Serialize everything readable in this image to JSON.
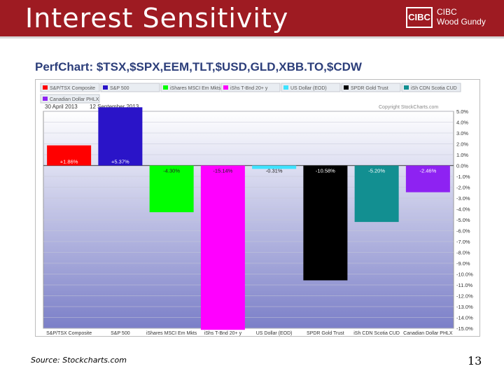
{
  "slide": {
    "title": "Interest Sensitivity",
    "source": "Source: Stockcharts.com",
    "page_number": "13"
  },
  "logo": {
    "mark": "CIBC",
    "line1": "CIBC",
    "line2": "Wood Gundy"
  },
  "colors": {
    "header": "#9e1b22",
    "perf_title": "#2c3e7a",
    "plot_bg_top": "#ffffff",
    "plot_bg_bottom": "#7b7fc8"
  },
  "chart_data": {
    "type": "bar",
    "title": "PerfChart: $TSX,$SPX,EEM,TLT,$USD,GLD,XBB.TO,$CDW",
    "date_start": "30 April 2013",
    "date_end": "12 September 2013",
    "copyright": "Copyright StockCharts.com",
    "legend_placement": "top",
    "ylim": [
      -15,
      5
    ],
    "yticks": [
      "5.0%",
      "4.0%",
      "3.0%",
      "2.0%",
      "1.0%",
      "0.0%",
      "-1.0%",
      "-2.0%",
      "-3.0%",
      "-4.0%",
      "-5.0%",
      "-6.0%",
      "-7.0%",
      "-8.0%",
      "-9.0%",
      "-10.0%",
      "-11.0%",
      "-12.0%",
      "-13.0%",
      "-14.0%",
      "-15.0%"
    ],
    "categories": [
      "S&P/TSX Composite",
      "S&P 500",
      "iShares MSCI Em Mkts",
      "iShs T-Bnd 20+ y",
      "US Dollar (EOD)",
      "SPDR Gold Trust",
      "iSh CDN Scotia CUD",
      "Canadian Dollar PHLX"
    ],
    "legend_labels": [
      "S&P/TSX Composite",
      "S&P 500",
      "iShares MSCI Em Mkts",
      "iShs T-Bnd 20+ y",
      "US Dollar (EOD)",
      "SPDR Gold Trust",
      "iSh CDN Scotia CUD",
      "Canadian Dollar PHLX"
    ],
    "x_labels": [
      "S&P/TSX Composite",
      "S&P 500",
      "iShares MSCI Em Mkts",
      "iShs T-Bnd 20+ y",
      "US Dollar (EOD)",
      "SPDR Gold Trust",
      "iSh CDN Scotia CUD",
      "Canadian Dollar PHLX"
    ],
    "values": [
      1.86,
      5.37,
      -4.3,
      -15.14,
      -0.31,
      -10.58,
      -5.2,
      -2.46
    ],
    "value_labels": [
      "+1.86%",
      "+5.37%",
      "-4.30%",
      "-15.14%",
      "-0.31%",
      "-10.58%",
      "-5.20%",
      "-2.46%"
    ],
    "colors": [
      "#ff0000",
      "#2a14c8",
      "#00ff00",
      "#ff00ff",
      "#3fe3ff",
      "#000000",
      "#128f91",
      "#8e22f2"
    ],
    "grid": true
  }
}
